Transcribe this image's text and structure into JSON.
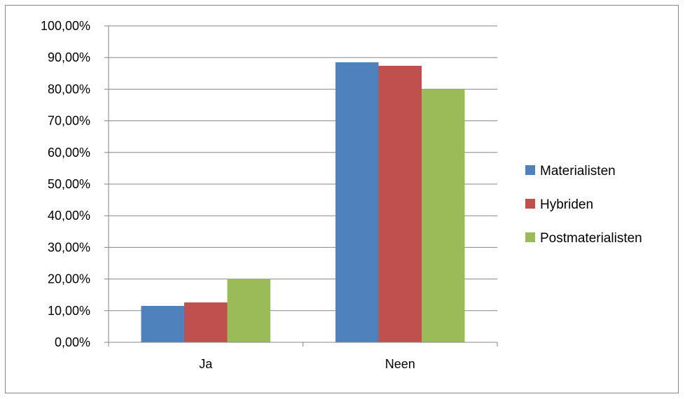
{
  "chart_data": {
    "type": "bar",
    "categories": [
      "Ja",
      "Neen"
    ],
    "series": [
      {
        "name": "Materialisten",
        "values": [
          11.5,
          88.5
        ],
        "color": "#4F81BD"
      },
      {
        "name": "Hybriden",
        "values": [
          12.6,
          87.4
        ],
        "color": "#C0504D"
      },
      {
        "name": "Postmaterialisten",
        "values": [
          20.0,
          80.0
        ],
        "color": "#9BBB59"
      }
    ],
    "ylim": [
      0,
      100
    ],
    "ytick_step": 10,
    "ytick_labels": [
      "0,00%",
      "10,00%",
      "20,00%",
      "30,00%",
      "40,00%",
      "50,00%",
      "60,00%",
      "70,00%",
      "80,00%",
      "90,00%",
      "100,00%"
    ],
    "grid": true,
    "legend_position": "right",
    "title": "",
    "xlabel": "",
    "ylabel": ""
  }
}
